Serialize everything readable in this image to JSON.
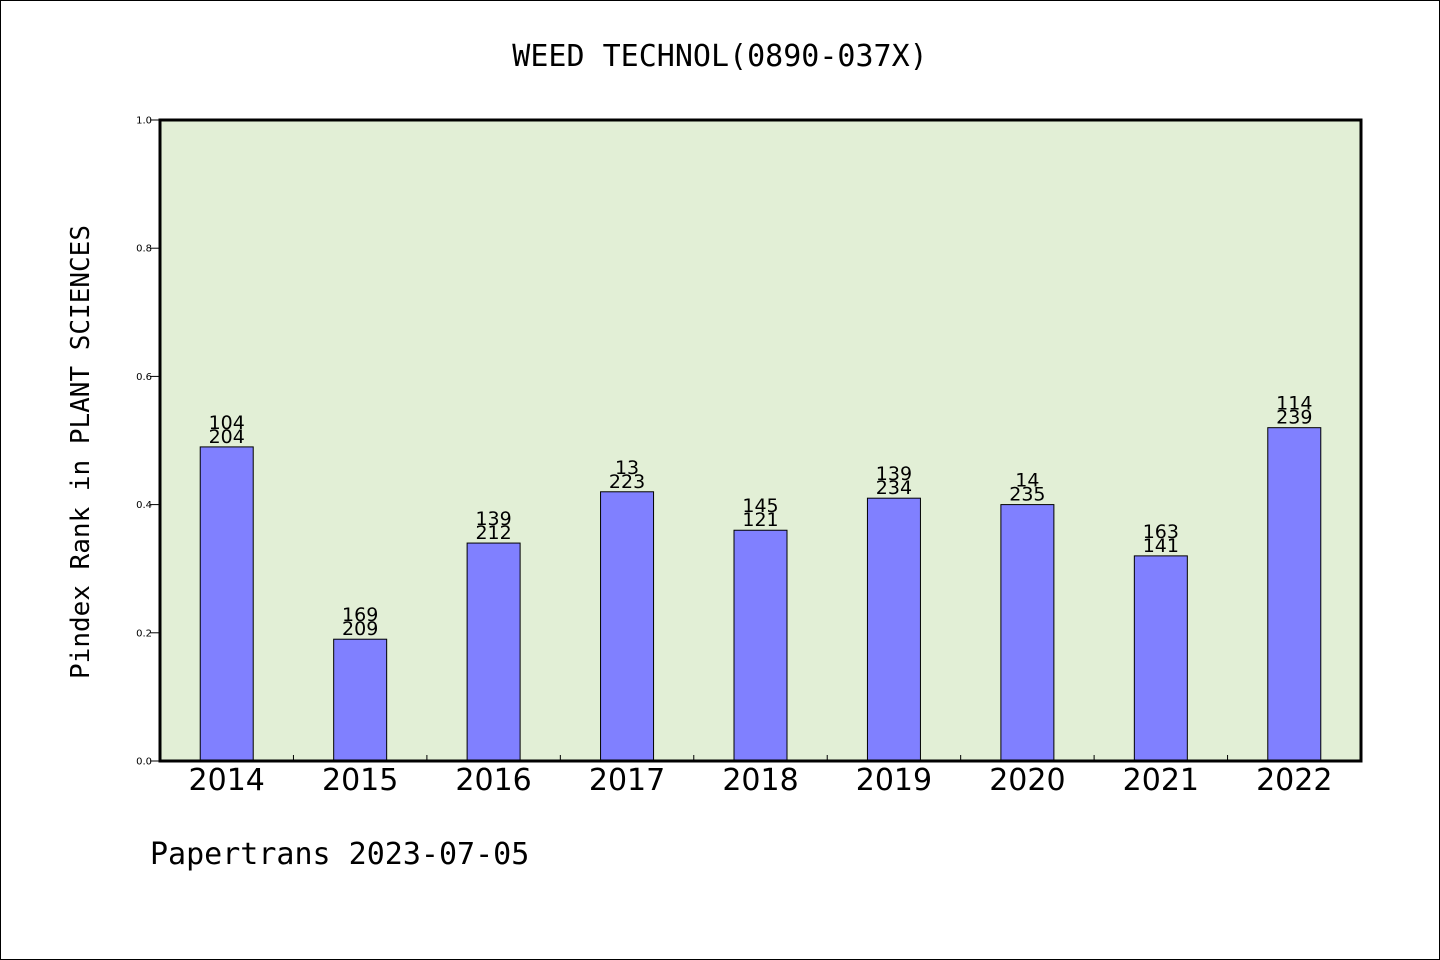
{
  "chart_data": {
    "type": "bar",
    "title": "WEED TECHNOL(0890-037X)",
    "ylabel": "Pindex Rank in PLANT SCIENCES",
    "xlabel": "",
    "ylim": [
      0,
      1.0
    ],
    "yticks": [
      "0.0",
      "0.2",
      "0.4",
      "0.6",
      "0.8",
      "1.0"
    ],
    "categories": [
      "2014",
      "2015",
      "2016",
      "2017",
      "2018",
      "2019",
      "2020",
      "2021",
      "2022"
    ],
    "values": [
      0.49,
      0.19,
      0.34,
      0.42,
      0.36,
      0.41,
      0.4,
      0.32,
      0.52
    ],
    "labels_top": [
      "104",
      "169",
      "139",
      "13",
      "145",
      "139",
      "14",
      "163",
      "114"
    ],
    "labels_bottom": [
      "204",
      "209",
      "212",
      "223",
      "121",
      "234",
      "235",
      "141",
      "239"
    ],
    "grid": false,
    "legend": "none",
    "colors": {
      "plot_bg": "#e2efd6",
      "bar": "#8080ff",
      "axis": "#000000"
    }
  },
  "footer": "Papertrans 2023-07-05"
}
